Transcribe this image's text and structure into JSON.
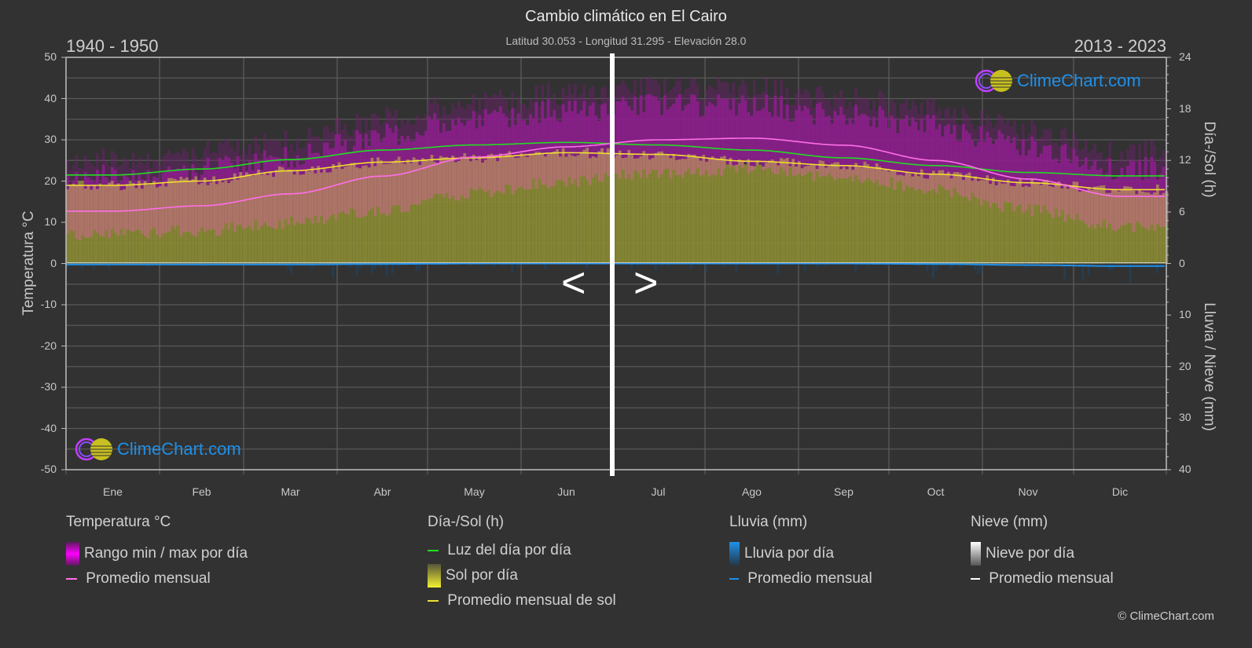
{
  "header": {
    "title": "Cambio climático en El Cairo",
    "subtitle": "Latitud 30.053 - Longitud 31.295 - Elevación 28.0",
    "period_left": "1940 - 1950",
    "period_right": "2013 - 2023"
  },
  "axes": {
    "left_title": "Temperatura °C",
    "right_top_title": "Día-/Sol (h)",
    "right_bottom_title": "Lluvia / Nieve (mm)",
    "left_ticks": [
      "50",
      "40",
      "30",
      "20",
      "10",
      "0",
      "-10",
      "-20",
      "-30",
      "-40",
      "-50"
    ],
    "right_top_ticks": [
      "24",
      "18",
      "12",
      "6",
      "0"
    ],
    "right_bottom_ticks": [
      "10",
      "20",
      "30",
      "40"
    ],
    "months": [
      "Ene",
      "Feb",
      "Mar",
      "Abr",
      "May",
      "Jun",
      "Jul",
      "Ago",
      "Sep",
      "Oct",
      "Nov",
      "Dic"
    ]
  },
  "navigation": {
    "prev": "<",
    "next": ">"
  },
  "logo": {
    "text": "ClimeChart.com"
  },
  "legend": {
    "temp": {
      "heading": "Temperatura °C",
      "range": "Rango min / max por día",
      "avg": "Promedio mensual"
    },
    "sun": {
      "heading": "Día-/Sol (h)",
      "daylight": "Luz del día por día",
      "sunshine": "Sol por día",
      "sun_avg": "Promedio mensual de sol"
    },
    "rain": {
      "heading": "Lluvia (mm)",
      "daily": "Lluvia por día",
      "avg": "Promedio mensual"
    },
    "snow": {
      "heading": "Nieve (mm)",
      "daily": "Nieve por día",
      "avg": "Promedio mensual"
    }
  },
  "copyright": "© ClimeChart.com",
  "colors": {
    "background": "#323232",
    "temp_range": "#c000c0",
    "temp_avg": "#ff6ee8",
    "daylight": "#22dd22",
    "sunshine": "#8a8a34",
    "sun_avg": "#f0e030",
    "rain": "#1e90e8",
    "snow": "#ffffff",
    "logo_text": "#1e90e8"
  },
  "chart_data": {
    "type": "line",
    "title": "Cambio climático en El Cairo",
    "subtitle": "Latitud 30.053 - Longitud 31.295 - Elevación 28.0",
    "categories": [
      "Ene",
      "Feb",
      "Mar",
      "Abr",
      "May",
      "Jun",
      "Jul",
      "Ago",
      "Sep",
      "Oct",
      "Nov",
      "Dic"
    ],
    "periods_compared": [
      "1940 - 1950",
      "2013 - 2023"
    ],
    "split_month_index": 6,
    "xlabel": "",
    "ylabel_left": "Temperatura °C",
    "ylabel_right_top": "Día-/Sol (h)",
    "ylabel_right_bottom": "Lluvia / Nieve (mm)",
    "ylim_left": [
      -50,
      50
    ],
    "ylim_right_top": [
      0,
      24
    ],
    "ylim_right_bottom": [
      0,
      40
    ],
    "grid": true,
    "legend_position": "bottom",
    "series": [
      {
        "name": "Temperatura promedio mensual (°C)",
        "axis": "left",
        "values": [
          12.7,
          14.0,
          16.9,
          21.2,
          25.8,
          28.3,
          30.0,
          30.4,
          28.7,
          25.0,
          20.5,
          16.3
        ]
      },
      {
        "name": "Rango max diario aprox. (°C)",
        "axis": "left",
        "values": [
          20,
          22,
          25,
          30,
          34,
          36,
          37,
          37,
          35,
          32,
          27,
          22
        ]
      },
      {
        "name": "Rango min diario aprox. (°C)",
        "axis": "left",
        "values": [
          7,
          8,
          10,
          13,
          17,
          20,
          22,
          23,
          21,
          18,
          13,
          9
        ]
      },
      {
        "name": "Luz del día por día (h)",
        "axis": "right_top",
        "values": [
          10.3,
          11.0,
          12.1,
          13.2,
          13.8,
          14.1,
          13.8,
          13.2,
          12.3,
          11.4,
          10.6,
          10.2
        ]
      },
      {
        "name": "Promedio mensual de sol (h)",
        "axis": "right_top",
        "values": [
          9.1,
          9.6,
          10.8,
          11.8,
          12.3,
          12.9,
          12.7,
          11.9,
          11.4,
          10.4,
          9.4,
          8.6
        ]
      },
      {
        "name": "Lluvia promedio mensual (mm)",
        "axis": "right_bottom",
        "values": [
          0.2,
          0.2,
          0.2,
          0.1,
          0.0,
          0.0,
          0.0,
          0.0,
          0.0,
          0.1,
          0.3,
          0.5
        ]
      },
      {
        "name": "Nieve promedio mensual (mm)",
        "axis": "right_bottom",
        "values": [
          0,
          0,
          0,
          0,
          0,
          0,
          0,
          0,
          0,
          0,
          0,
          0
        ]
      }
    ]
  }
}
